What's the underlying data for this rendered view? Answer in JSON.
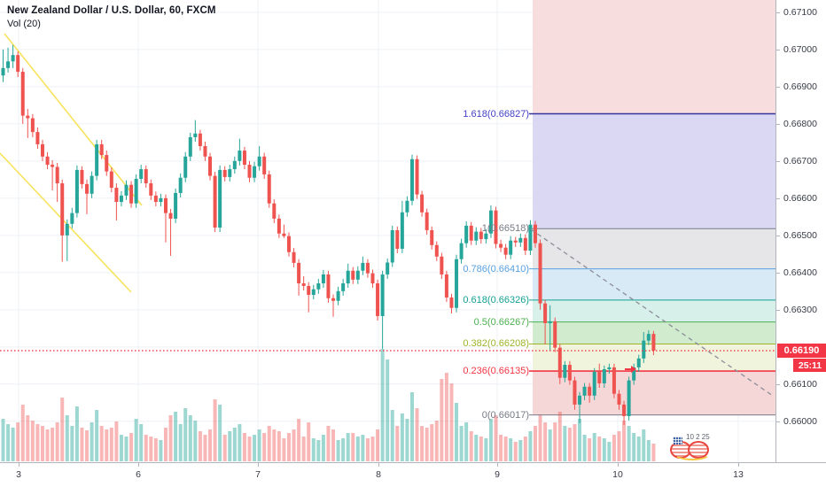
{
  "header": {
    "title": "New Zealand Dollar / U.S. Dollar, 60, FXCM",
    "indicator": "Vol (20)"
  },
  "price_axis": {
    "ticks": [
      "0.67100",
      "0.67000",
      "0.66900",
      "0.66800",
      "0.66700",
      "0.66600",
      "0.66500",
      "0.66400",
      "0.66300",
      "0.66100",
      "0.66000"
    ],
    "current_price": {
      "value": "0.66190",
      "countdown": "25:11",
      "badge_color": "#f23645"
    }
  },
  "time_axis": {
    "ticks": [
      "3",
      "6",
      "7",
      "8",
      "9",
      "10",
      "13"
    ]
  },
  "logo": {
    "text": "10 2 25"
  },
  "chart_data": {
    "type": "candlestick+volume",
    "title": "New Zealand Dollar / U.S. Dollar, 60, FXCM",
    "ylim": [
      0.6589,
      0.67133
    ],
    "up_color": "#26a69a",
    "down_color": "#ef5350",
    "vol_up_color": "rgba(38,166,154,0.45)",
    "vol_down_color": "rgba(239,83,80,0.42)",
    "grid_color": "#edf0f5",
    "candles": [
      [
        0.6693,
        0.67,
        0.66912,
        0.6695
      ],
      [
        0.6695,
        0.67005,
        0.66938,
        0.66968
      ],
      [
        0.66968,
        0.67012,
        0.6695,
        0.66985
      ],
      [
        0.66985,
        0.66995,
        0.66926,
        0.6694
      ],
      [
        0.6694,
        0.6695,
        0.668,
        0.66822
      ],
      [
        0.66822,
        0.6684,
        0.66762,
        0.66815
      ],
      [
        0.66815,
        0.66826,
        0.66764,
        0.66778
      ],
      [
        0.66778,
        0.6679,
        0.66733,
        0.66745
      ],
      [
        0.66745,
        0.66757,
        0.667,
        0.66712
      ],
      [
        0.66712,
        0.66724,
        0.66678,
        0.6669
      ],
      [
        0.6669,
        0.66702,
        0.66621,
        0.66684
      ],
      [
        0.66684,
        0.66695,
        0.6659,
        0.6664
      ],
      [
        0.6664,
        0.6665,
        0.66429,
        0.665
      ],
      [
        0.665,
        0.66543,
        0.66431,
        0.66531
      ],
      [
        0.66531,
        0.66574,
        0.66519,
        0.6656
      ],
      [
        0.6656,
        0.66688,
        0.66548,
        0.66676
      ],
      [
        0.66676,
        0.66686,
        0.66626,
        0.66638
      ],
      [
        0.66638,
        0.6665,
        0.66557,
        0.66612
      ],
      [
        0.66612,
        0.66672,
        0.666,
        0.6666
      ],
      [
        0.6666,
        0.66757,
        0.66648,
        0.66745
      ],
      [
        0.66745,
        0.66757,
        0.66705,
        0.66716
      ],
      [
        0.66716,
        0.66728,
        0.6666,
        0.66672
      ],
      [
        0.66672,
        0.66683,
        0.66616,
        0.66628
      ],
      [
        0.66628,
        0.6664,
        0.6654,
        0.6659
      ],
      [
        0.6659,
        0.66619,
        0.66578,
        0.66607
      ],
      [
        0.66607,
        0.66648,
        0.66595,
        0.66636
      ],
      [
        0.66636,
        0.66646,
        0.66574,
        0.66586
      ],
      [
        0.66586,
        0.66664,
        0.66574,
        0.66652
      ],
      [
        0.66652,
        0.6669,
        0.6664,
        0.66678
      ],
      [
        0.66678,
        0.66688,
        0.66628,
        0.6664
      ],
      [
        0.6664,
        0.6665,
        0.66595,
        0.66607
      ],
      [
        0.66607,
        0.66618,
        0.66578,
        0.6659
      ],
      [
        0.6659,
        0.66612,
        0.66578,
        0.666
      ],
      [
        0.666,
        0.6661,
        0.66481,
        0.6656
      ],
      [
        0.6656,
        0.66571,
        0.66445,
        0.66545
      ],
      [
        0.66545,
        0.66626,
        0.66533,
        0.66614
      ],
      [
        0.66614,
        0.66667,
        0.66602,
        0.66655
      ],
      [
        0.66655,
        0.66724,
        0.66643,
        0.66712
      ],
      [
        0.66712,
        0.66776,
        0.667,
        0.66764
      ],
      [
        0.66764,
        0.6681,
        0.66752,
        0.66774
      ],
      [
        0.66774,
        0.66784,
        0.66728,
        0.6674
      ],
      [
        0.6674,
        0.66752,
        0.667,
        0.66712
      ],
      [
        0.66712,
        0.66722,
        0.66648,
        0.6666
      ],
      [
        0.6666,
        0.66671,
        0.66509,
        0.66521
      ],
      [
        0.66521,
        0.66688,
        0.66509,
        0.66676
      ],
      [
        0.66676,
        0.66686,
        0.66645,
        0.66657
      ],
      [
        0.66657,
        0.6669,
        0.66645,
        0.66678
      ],
      [
        0.66678,
        0.66712,
        0.66666,
        0.667
      ],
      [
        0.667,
        0.6676,
        0.66688,
        0.66728
      ],
      [
        0.66728,
        0.66738,
        0.66678,
        0.6669
      ],
      [
        0.6669,
        0.667,
        0.66643,
        0.66655
      ],
      [
        0.66655,
        0.66698,
        0.66643,
        0.66686
      ],
      [
        0.66686,
        0.6674,
        0.66674,
        0.66712
      ],
      [
        0.66712,
        0.66722,
        0.66652,
        0.66664
      ],
      [
        0.66664,
        0.66674,
        0.66574,
        0.66586
      ],
      [
        0.66586,
        0.66597,
        0.66533,
        0.66545
      ],
      [
        0.66545,
        0.66556,
        0.66493,
        0.66505
      ],
      [
        0.66505,
        0.66529,
        0.66493,
        0.66498
      ],
      [
        0.66498,
        0.66508,
        0.66443,
        0.66455
      ],
      [
        0.66455,
        0.66466,
        0.66414,
        0.66426
      ],
      [
        0.66426,
        0.66436,
        0.66338,
        0.66371
      ],
      [
        0.66371,
        0.6639,
        0.66352,
        0.66364
      ],
      [
        0.66364,
        0.66374,
        0.66293,
        0.6634
      ],
      [
        0.6634,
        0.66367,
        0.66328,
        0.66355
      ],
      [
        0.66355,
        0.66383,
        0.66343,
        0.66371
      ],
      [
        0.66371,
        0.66407,
        0.66359,
        0.66395
      ],
      [
        0.66395,
        0.66405,
        0.66319,
        0.66331
      ],
      [
        0.66331,
        0.66341,
        0.66281,
        0.66324
      ],
      [
        0.66324,
        0.66362,
        0.66312,
        0.6635
      ],
      [
        0.6635,
        0.66383,
        0.66338,
        0.66371
      ],
      [
        0.66371,
        0.66424,
        0.66359,
        0.66405
      ],
      [
        0.66405,
        0.66415,
        0.66369,
        0.66381
      ],
      [
        0.66381,
        0.66417,
        0.66369,
        0.66405
      ],
      [
        0.66405,
        0.66443,
        0.66393,
        0.66426
      ],
      [
        0.66426,
        0.66436,
        0.66386,
        0.66398
      ],
      [
        0.66398,
        0.66408,
        0.66359,
        0.66371
      ],
      [
        0.66371,
        0.66381,
        0.66271,
        0.66283
      ],
      [
        0.66283,
        0.66405,
        0.66195,
        0.66395
      ],
      [
        0.66395,
        0.66438,
        0.66383,
        0.66427
      ],
      [
        0.66427,
        0.66526,
        0.66415,
        0.66514
      ],
      [
        0.66514,
        0.66524,
        0.66452,
        0.66464
      ],
      [
        0.66464,
        0.66593,
        0.66452,
        0.66562
      ],
      [
        0.66562,
        0.66605,
        0.6655,
        0.66593
      ],
      [
        0.66593,
        0.66717,
        0.66581,
        0.66705
      ],
      [
        0.66705,
        0.66715,
        0.66598,
        0.6661
      ],
      [
        0.6661,
        0.6662,
        0.6655,
        0.66562
      ],
      [
        0.66562,
        0.66572,
        0.66502,
        0.66514
      ],
      [
        0.66514,
        0.66524,
        0.66462,
        0.66474
      ],
      [
        0.66474,
        0.66484,
        0.66431,
        0.66443
      ],
      [
        0.66443,
        0.66453,
        0.66383,
        0.66395
      ],
      [
        0.66395,
        0.66405,
        0.66321,
        0.66333
      ],
      [
        0.66333,
        0.66343,
        0.6629,
        0.66305
      ],
      [
        0.66305,
        0.66448,
        0.66293,
        0.66436
      ],
      [
        0.66436,
        0.66491,
        0.66424,
        0.66479
      ],
      [
        0.66479,
        0.66538,
        0.66467,
        0.66526
      ],
      [
        0.66526,
        0.66536,
        0.66474,
        0.66486
      ],
      [
        0.66486,
        0.66522,
        0.66474,
        0.6651
      ],
      [
        0.6651,
        0.6652,
        0.66478,
        0.6649
      ],
      [
        0.6649,
        0.66517,
        0.66478,
        0.66505
      ],
      [
        0.66505,
        0.66581,
        0.66493,
        0.66567
      ],
      [
        0.66567,
        0.66577,
        0.66465,
        0.66477
      ],
      [
        0.66477,
        0.66488,
        0.66455,
        0.66467
      ],
      [
        0.66467,
        0.66477,
        0.66436,
        0.66448
      ],
      [
        0.66448,
        0.66498,
        0.66436,
        0.66486
      ],
      [
        0.66486,
        0.66496,
        0.66469,
        0.66481
      ],
      [
        0.66481,
        0.66505,
        0.66469,
        0.66493
      ],
      [
        0.66493,
        0.66503,
        0.66447,
        0.66459
      ],
      [
        0.66459,
        0.66541,
        0.66447,
        0.66529
      ],
      [
        0.66529,
        0.66539,
        0.66467,
        0.66479
      ],
      [
        0.66479,
        0.66489,
        0.663,
        0.66317
      ],
      [
        0.66317,
        0.66327,
        0.66207,
        0.66264
      ],
      [
        0.66264,
        0.66312,
        0.6619,
        0.66269
      ],
      [
        0.66269,
        0.66279,
        0.66186,
        0.66198
      ],
      [
        0.66198,
        0.66208,
        0.661,
        0.66117
      ],
      [
        0.66117,
        0.66162,
        0.66105,
        0.66152
      ],
      [
        0.66152,
        0.66162,
        0.66098,
        0.6611
      ],
      [
        0.6611,
        0.6612,
        0.66031,
        0.66045
      ],
      [
        0.66045,
        0.66079,
        0.65995,
        0.66069
      ],
      [
        0.66069,
        0.66103,
        0.66057,
        0.66093
      ],
      [
        0.66093,
        0.66103,
        0.6605,
        0.66069
      ],
      [
        0.66069,
        0.66143,
        0.66057,
        0.66133
      ],
      [
        0.66133,
        0.66155,
        0.6609,
        0.66102
      ],
      [
        0.66102,
        0.6615,
        0.6609,
        0.6614
      ],
      [
        0.6614,
        0.66155,
        0.66128,
        0.66145
      ],
      [
        0.66145,
        0.66155,
        0.66062,
        0.66074
      ],
      [
        0.66074,
        0.66084,
        0.66031,
        0.66045
      ],
      [
        0.66045,
        0.66055,
        0.6599,
        0.66014
      ],
      [
        0.66014,
        0.6612,
        0.66002,
        0.6611
      ],
      [
        0.6611,
        0.66155,
        0.66098,
        0.66145
      ],
      [
        0.66145,
        0.66179,
        0.66133,
        0.66169
      ],
      [
        0.66169,
        0.6624,
        0.66157,
        0.66217
      ],
      [
        0.66217,
        0.66245,
        0.66205,
        0.66235
      ],
      [
        0.66235,
        0.66243,
        0.66178,
        0.6619
      ]
    ],
    "volume": [
      48,
      42,
      38,
      44,
      64,
      52,
      46,
      42,
      40,
      36,
      38,
      44,
      72,
      52,
      40,
      62,
      38,
      35,
      44,
      58,
      40,
      36,
      38,
      45,
      30,
      28,
      32,
      48,
      42,
      30,
      28,
      26,
      24,
      38,
      52,
      56,
      42,
      60,
      52,
      46,
      34,
      30,
      36,
      70,
      64,
      30,
      34,
      38,
      42,
      32,
      28,
      30,
      36,
      32,
      40,
      36,
      34,
      26,
      32,
      36,
      48,
      28,
      44,
      26,
      24,
      30,
      40,
      36,
      24,
      26,
      32,
      32,
      28,
      30,
      26,
      28,
      36,
      127,
      115,
      58,
      40,
      54,
      48,
      78,
      60,
      40,
      38,
      42,
      46,
      93,
      100,
      88,
      66,
      40,
      44,
      34,
      30,
      28,
      26,
      48,
      52,
      30,
      28,
      26,
      22,
      24,
      28,
      34,
      40,
      52,
      44,
      36,
      44,
      56,
      40,
      38,
      42,
      48,
      30,
      26,
      32,
      28,
      26,
      22,
      30,
      34,
      46,
      40,
      32,
      28,
      36,
      24,
      20
    ],
    "fib_levels": [
      {
        "ratio": "1.618",
        "price": 0.66827,
        "label": "1.618(0.66827)",
        "color": "#35359e",
        "label_color": "#4340c4",
        "width": 1.4
      },
      {
        "ratio": "1",
        "price": 0.66518,
        "label": "1(0.66518)",
        "color": "#787b86",
        "label_color": "#787b86",
        "width": 1
      },
      {
        "ratio": "0.786",
        "price": 0.6641,
        "label": "0.786(0.66410)",
        "color": "#58a0e0",
        "label_color": "#58a0e0",
        "width": 1
      },
      {
        "ratio": "0.618",
        "price": 0.66326,
        "label": "0.618(0.66326)",
        "color": "#13a093",
        "label_color": "#13a093",
        "width": 1
      },
      {
        "ratio": "0.5",
        "price": 0.66267,
        "label": "0.5(0.66267)",
        "color": "#4caf50",
        "label_color": "#4caf50",
        "width": 1
      },
      {
        "ratio": "0.382",
        "price": 0.66208,
        "label": "0.382(0.66208)",
        "color": "#9fb32a",
        "label_color": "#9fb32a",
        "width": 1
      },
      {
        "ratio": "0.236",
        "price": 0.66135,
        "label": "0.236(0.66135)",
        "color": "#f23645",
        "label_color": "#f23645",
        "width": 1.6
      },
      {
        "ratio": "0",
        "price": 0.66017,
        "label": "0(0.66017)",
        "color": "#787b86",
        "label_color": "#787b86",
        "width": 1
      }
    ],
    "fib_zones": [
      {
        "top_price": null,
        "bottom_price": 0.66827,
        "fill": "#f7dddd"
      },
      {
        "top_price": 0.66827,
        "bottom_price": 0.66518,
        "fill": "#dbd8f3"
      },
      {
        "top_price": 0.66518,
        "bottom_price": 0.6641,
        "fill": "#e6e6e9"
      },
      {
        "top_price": 0.6641,
        "bottom_price": 0.66326,
        "fill": "#d8eaf6"
      },
      {
        "top_price": 0.66326,
        "bottom_price": 0.66267,
        "fill": "#d7f0ea"
      },
      {
        "top_price": 0.66267,
        "bottom_price": 0.66208,
        "fill": "#d1ebce"
      },
      {
        "top_price": 0.66208,
        "bottom_price": 0.66135,
        "fill": "#f0f4dc"
      },
      {
        "top_price": 0.66135,
        "bottom_price": 0.66017,
        "fill": "#f6d7d7"
      }
    ],
    "trend_lines": [
      {
        "name": "yellow-channel-upper",
        "x1": 5,
        "y1": 38,
        "x2": 160,
        "y2": 232,
        "color": "#f7e04b",
        "width": 1.6,
        "dash": ""
      },
      {
        "name": "yellow-channel-lower",
        "x1": 0,
        "y1": 173,
        "x2": 148,
        "y2": 330,
        "color": "#f7e04b",
        "width": 1.6,
        "dash": ""
      },
      {
        "name": "gray-dashed-trendline",
        "x1": 599,
        "y1": 259,
        "x2": 872,
        "y2": 447,
        "color": "#8a8e99",
        "width": 1.3,
        "dash": "5 4"
      }
    ],
    "last_price_line": {
      "price": 0.6619,
      "color": "#f23645"
    },
    "marker_arrow": {
      "x": 712,
      "price": 0.6614,
      "color": "#f23645"
    }
  }
}
